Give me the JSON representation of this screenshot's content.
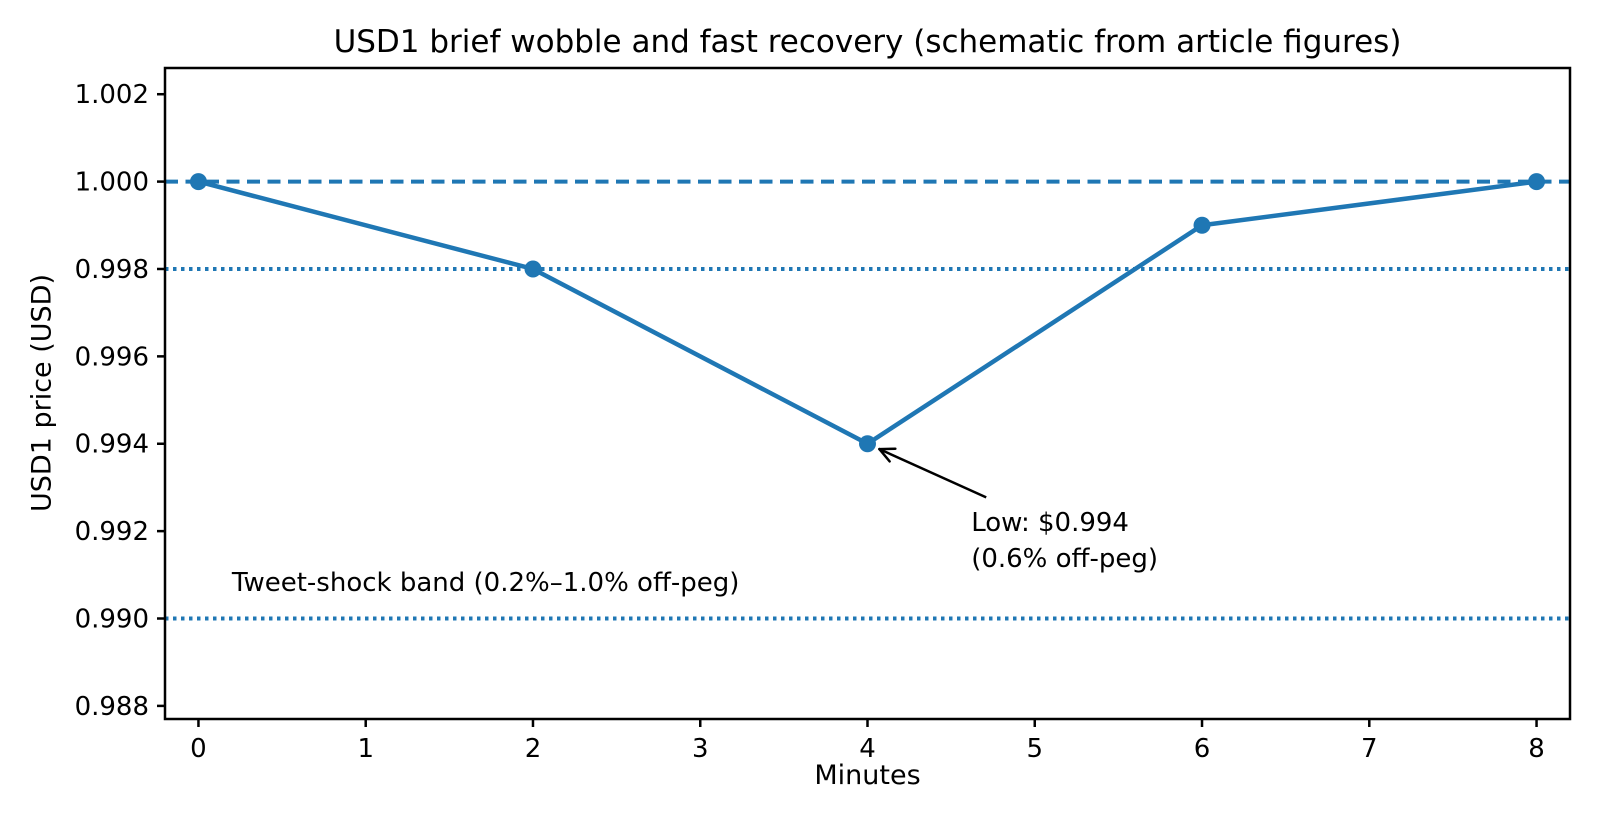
{
  "chart_data": {
    "type": "line",
    "title": "USD1 brief wobble and fast recovery (schematic from article figures)",
    "xlabel": "Minutes",
    "ylabel": "USD1 price (USD)",
    "x": [
      0,
      2,
      4,
      6,
      8
    ],
    "y": [
      1.0,
      0.998,
      0.994,
      0.999,
      1.0
    ],
    "series_name": "USD1 price",
    "line_color": "#1f77b4",
    "marker": "circle",
    "grid": false,
    "legend": null,
    "xlim": [
      -0.2,
      8.2
    ],
    "ylim": [
      0.9877,
      1.0026
    ],
    "xticks": [
      0,
      1,
      2,
      3,
      4,
      5,
      6,
      7,
      8
    ],
    "xtick_labels": [
      "0",
      "1",
      "2",
      "3",
      "4",
      "5",
      "6",
      "7",
      "8"
    ],
    "yticks": [
      0.988,
      0.99,
      0.992,
      0.994,
      0.996,
      0.998,
      1.0,
      1.002
    ],
    "ytick_labels": [
      "0.988",
      "0.990",
      "0.992",
      "0.994",
      "0.996",
      "0.998",
      "1.000",
      "1.002"
    ],
    "reference_lines": [
      {
        "name": "peg-line",
        "y": 1.0,
        "style": "dashed",
        "color": "#1f77b4"
      },
      {
        "name": "band-upper-line",
        "y": 0.998,
        "style": "dotted",
        "color": "#1f77b4"
      },
      {
        "name": "band-lower-line",
        "y": 0.99,
        "style": "dotted",
        "color": "#1f77b4"
      }
    ],
    "annotation": {
      "line1": "Low: $0.994",
      "line2": "(0.6% off-peg)",
      "point_x": 4,
      "point_y": 0.994,
      "text_x": 4.62,
      "text_y": 0.9922,
      "arrow_color": "#000000"
    },
    "band_label": {
      "text": "Tweet-shock band (0.2%–1.0% off-peg)",
      "x": 0.2,
      "y": 0.9907
    },
    "axis_color": "#000000",
    "text_color": "#000000"
  }
}
